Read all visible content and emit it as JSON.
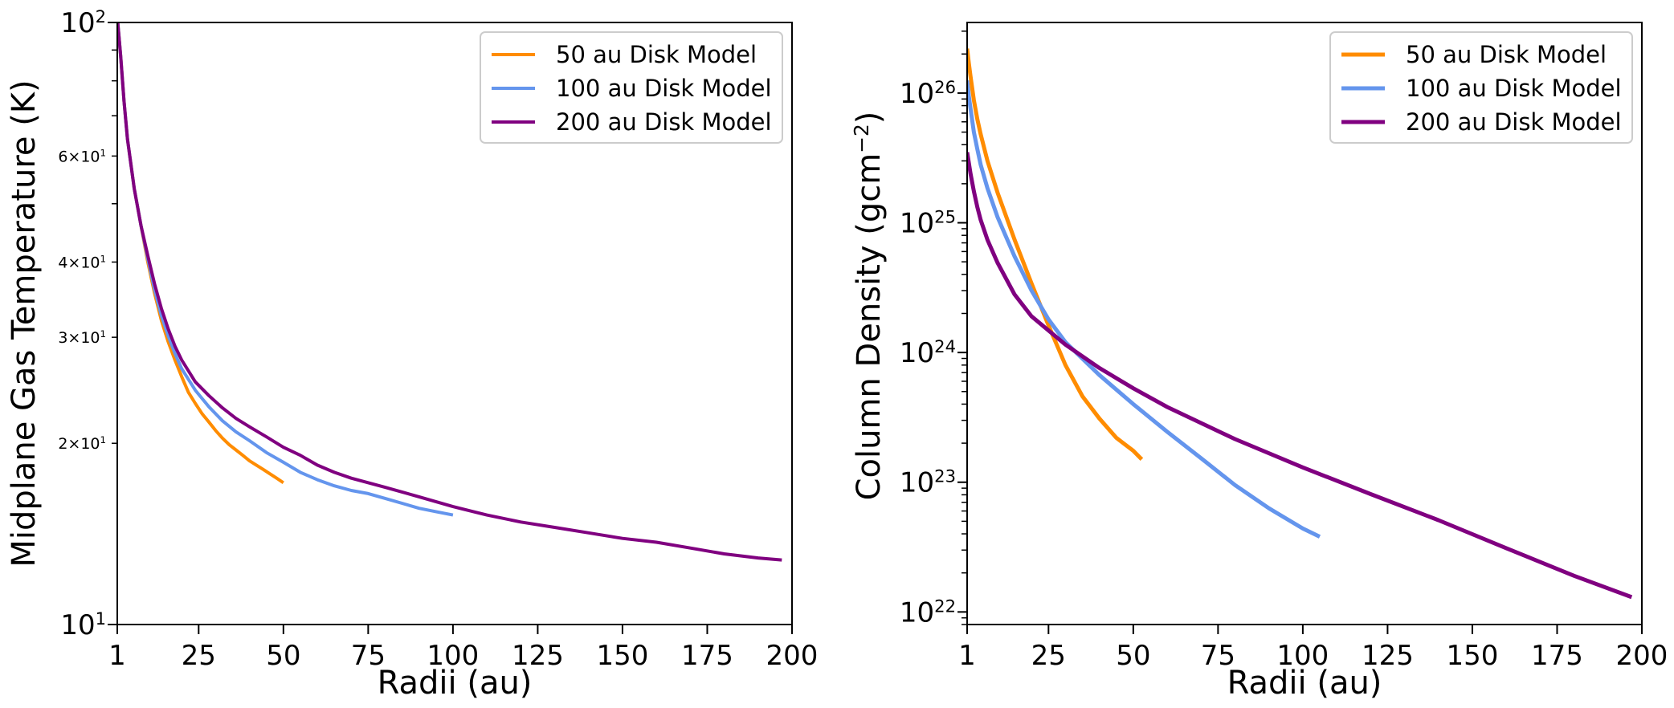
{
  "chart_data": [
    {
      "type": "line",
      "id": "temperature",
      "yscale": "log",
      "xlabel": "Radii (au)",
      "ylabel": "Midplane Gas Temperature (K)",
      "xlim": [
        1,
        200
      ],
      "ylim": [
        10,
        100
      ],
      "xticks": [
        1,
        25,
        50,
        75,
        100,
        125,
        150,
        175,
        200
      ],
      "y_major_ticks": [
        {
          "value": 100,
          "base": "10",
          "exp": "2"
        },
        {
          "value": 10,
          "base": "10",
          "exp": "1"
        }
      ],
      "y_minor_labels": [
        {
          "value": 60,
          "mant": "6",
          "base": "10",
          "exp": "1"
        },
        {
          "value": 40,
          "mant": "4",
          "base": "10",
          "exp": "1"
        },
        {
          "value": 30,
          "mant": "3",
          "base": "10",
          "exp": "1"
        },
        {
          "value": 20,
          "mant": "2",
          "base": "10",
          "exp": "1"
        }
      ],
      "legend": "top-right",
      "series": [
        {
          "name": "50 au Disk Model",
          "color": "#ff8c00",
          "x": [
            1,
            2,
            3,
            4,
            6,
            8,
            10,
            12,
            14,
            16,
            18,
            20,
            22,
            24,
            26,
            28,
            30,
            32,
            34,
            36,
            38,
            40,
            42,
            44,
            46,
            48,
            50
          ],
          "y": [
            102,
            88,
            74,
            64,
            53,
            46,
            40,
            35.5,
            32,
            29.5,
            27.5,
            25.8,
            24.3,
            23.3,
            22.4,
            21.7,
            21.0,
            20.4,
            19.9,
            19.5,
            19.1,
            18.7,
            18.4,
            18.1,
            17.8,
            17.5,
            17.2
          ]
        },
        {
          "name": "100 au Disk Model",
          "color": "#6495ed",
          "x": [
            1,
            2,
            3,
            4,
            6,
            8,
            10,
            12,
            14,
            16,
            18,
            20,
            24,
            28,
            32,
            36,
            40,
            45,
            50,
            55,
            60,
            65,
            70,
            75,
            80,
            85,
            90,
            95,
            100
          ],
          "y": [
            102,
            88,
            74,
            64,
            53,
            46,
            40.5,
            36,
            32.6,
            30.2,
            28.2,
            26.6,
            24.5,
            23.0,
            21.8,
            20.9,
            20.2,
            19.3,
            18.6,
            17.9,
            17.4,
            17.0,
            16.7,
            16.5,
            16.2,
            15.9,
            15.6,
            15.4,
            15.2
          ]
        },
        {
          "name": "200 au Disk Model",
          "color": "#800080",
          "x": [
            1,
            2,
            3,
            4,
            6,
            8,
            10,
            12,
            14,
            16,
            18,
            20,
            24,
            28,
            32,
            36,
            40,
            45,
            50,
            55,
            60,
            65,
            70,
            80,
            90,
            100,
            110,
            120,
            130,
            140,
            150,
            160,
            170,
            180,
            190,
            197
          ],
          "y": [
            102,
            88,
            74,
            64,
            53,
            46,
            41,
            36.8,
            33.5,
            31,
            29,
            27.5,
            25.3,
            24.0,
            22.9,
            22.0,
            21.3,
            20.5,
            19.7,
            19.1,
            18.4,
            17.9,
            17.5,
            16.9,
            16.3,
            15.7,
            15.2,
            14.8,
            14.5,
            14.2,
            13.9,
            13.7,
            13.4,
            13.1,
            12.9,
            12.8
          ]
        }
      ]
    },
    {
      "type": "line",
      "id": "column-density",
      "yscale": "log",
      "xlabel": "Radii (au)",
      "ylabel_main": "Column Density (gcm",
      "ylabel_sup": "−2",
      "ylabel_end": ")",
      "xlim": [
        1,
        200
      ],
      "ylim": [
        8e+21,
        3.5e+26
      ],
      "xticks": [
        1,
        25,
        50,
        75,
        100,
        125,
        150,
        175,
        200
      ],
      "y_major_ticks": [
        {
          "value": 1e+26,
          "base": "10",
          "exp": "26"
        },
        {
          "value": 1e+25,
          "base": "10",
          "exp": "25"
        },
        {
          "value": 1e+24,
          "base": "10",
          "exp": "24"
        },
        {
          "value": 1e+23,
          "base": "10",
          "exp": "23"
        },
        {
          "value": 1e+22,
          "base": "10",
          "exp": "22"
        }
      ],
      "legend": "top-right",
      "series": [
        {
          "name": "50 au Disk Model",
          "color": "#ff8c00",
          "x": [
            1,
            1.5,
            2,
            3,
            4,
            5,
            7,
            10,
            15,
            20,
            25,
            30,
            35,
            40,
            45,
            50,
            52.5
          ],
          "y": [
            2.2e+26,
            1.7e+26,
            1.35e+26,
            8.8e+25,
            6.3e+25,
            4.8e+25,
            3e+25,
            1.7e+25,
            7.4e+24,
            3.4e+24,
            1.62e+24,
            8e+23,
            4.6e+23,
            3.1e+23,
            2.2e+23,
            1.75e+23,
            1.5e+23
          ]
        },
        {
          "name": "100 au Disk Model",
          "color": "#6495ed",
          "x": [
            1,
            1.5,
            2,
            3,
            4,
            5,
            7,
            10,
            15,
            20,
            25,
            30,
            40,
            50,
            60,
            70,
            80,
            90,
            100,
            105
          ],
          "y": [
            1.25e+26,
            9.5e+25,
            7.6e+25,
            5e+25,
            3.7e+25,
            2.8e+25,
            1.85e+25,
            1.1e+25,
            5.5e+24,
            3e+24,
            1.8e+24,
            1.2e+24,
            6.7e+23,
            4e+23,
            2.45e+23,
            1.53e+23,
            9.5e+22,
            6.3e+22,
            4.4e+22,
            3.8e+22
          ]
        },
        {
          "name": "200 au Disk Model",
          "color": "#800080",
          "x": [
            1,
            1.5,
            2,
            3,
            4,
            5,
            7,
            10,
            15,
            20,
            30,
            40,
            50,
            60,
            80,
            100,
            120,
            140,
            160,
            180,
            197
          ],
          "y": [
            3.5e+25,
            2.9e+25,
            2.4e+25,
            1.75e+25,
            1.32e+25,
            1.05e+25,
            7.4e+24,
            4.9e+24,
            2.8e+24,
            1.9e+24,
            1.15e+24,
            7.6e+23,
            5.3e+23,
            3.8e+23,
            2.15e+23,
            1.3e+23,
            8.1e+22,
            5.1e+22,
            3.1e+22,
            1.9e+22,
            1.3e+22
          ]
        }
      ]
    }
  ]
}
